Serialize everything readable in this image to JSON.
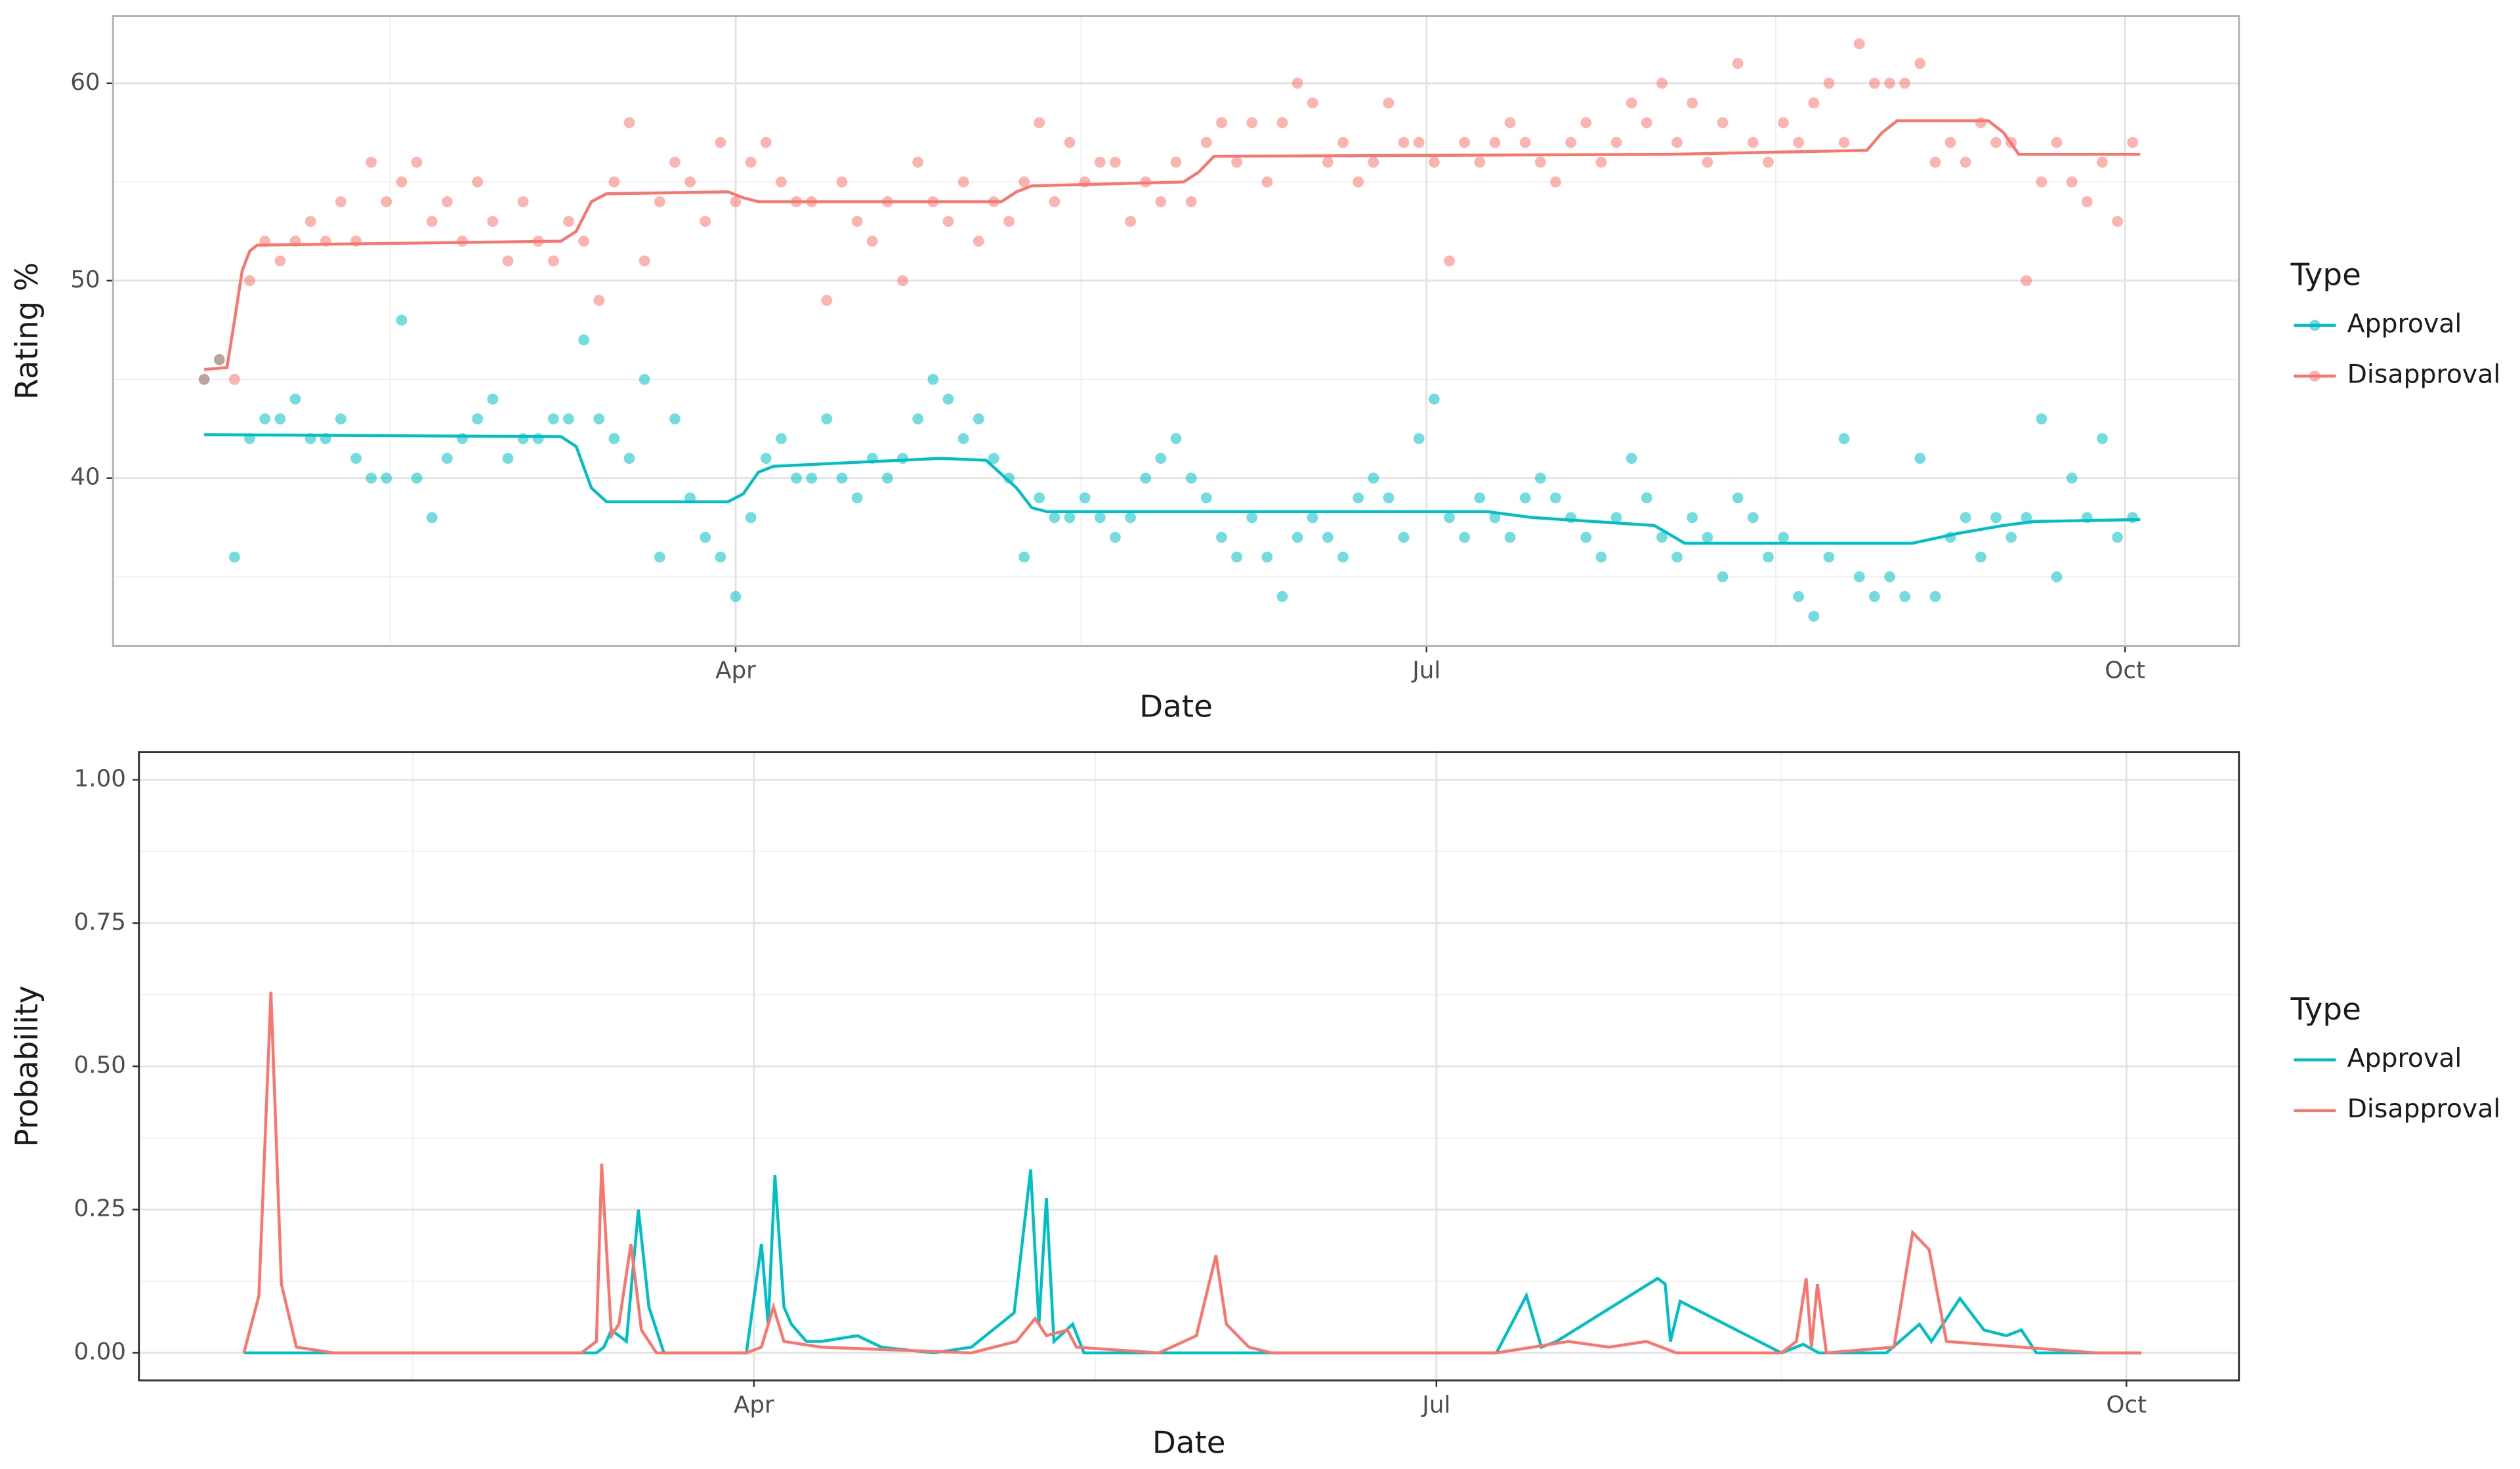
{
  "chart_data": [
    {
      "type": "scatter",
      "x_label": "Date",
      "y_label": "Rating %",
      "legend_title": "Type",
      "legend_position": "right",
      "grid": true,
      "xlim": [
        9,
        289
      ],
      "xticks": [
        {
          "value": 91,
          "label": "Apr"
        },
        {
          "value": 182,
          "label": "Jul"
        },
        {
          "value": 274,
          "label": "Oct"
        }
      ],
      "ylim": [
        31.5,
        63.4
      ],
      "yticks": [
        40,
        50,
        60
      ],
      "series": [
        {
          "name": "Approval",
          "color": "#00BFC4",
          "x": [
            21,
            23,
            25,
            27,
            29,
            31,
            33,
            35,
            37,
            39,
            41,
            43,
            45,
            47,
            49,
            51,
            53,
            55,
            57,
            59,
            61,
            63,
            65,
            67,
            69,
            71,
            73,
            75,
            77,
            79,
            81,
            83,
            85,
            87,
            89,
            91,
            93,
            95,
            97,
            99,
            101,
            103,
            105,
            107,
            109,
            111,
            113,
            115,
            117,
            119,
            121,
            123,
            125,
            127,
            129,
            131,
            133,
            135,
            137,
            139,
            141,
            143,
            145,
            147,
            149,
            151,
            153,
            155,
            157,
            159,
            161,
            163,
            165,
            167,
            169,
            171,
            173,
            175,
            177,
            179,
            181,
            183,
            185,
            187,
            189,
            191,
            193,
            195,
            197,
            199,
            201,
            203,
            205,
            207,
            209,
            211,
            213,
            215,
            217,
            219,
            221,
            223,
            225,
            227,
            229,
            231,
            233,
            235,
            237,
            239,
            241,
            243,
            245,
            247,
            249,
            251,
            253,
            255,
            257,
            259,
            261,
            263,
            265,
            267,
            269,
            271,
            273,
            275
          ],
          "values": [
            45,
            46,
            36,
            42,
            43,
            43,
            44,
            42,
            42,
            43,
            41,
            40,
            40,
            48,
            40,
            38,
            41,
            42,
            43,
            44,
            41,
            42,
            42,
            43,
            43,
            47,
            43,
            42,
            41,
            45,
            36,
            43,
            39,
            37,
            36,
            34,
            38,
            41,
            42,
            40,
            40,
            43,
            40,
            39,
            41,
            40,
            41,
            43,
            45,
            44,
            42,
            43,
            41,
            40,
            36,
            39,
            38,
            38,
            39,
            38,
            37,
            38,
            40,
            41,
            42,
            40,
            39,
            37,
            36,
            38,
            36,
            34,
            37,
            38,
            37,
            36,
            39,
            40,
            39,
            37,
            42,
            44,
            38,
            37,
            39,
            38,
            37,
            39,
            40,
            39,
            38,
            37,
            36,
            38,
            41,
            39,
            37,
            36,
            38,
            37,
            35,
            39,
            38,
            36,
            37,
            34,
            33,
            36,
            42,
            35,
            34,
            35,
            34,
            41,
            34,
            37,
            38,
            36,
            38,
            37,
            38,
            43,
            35,
            40,
            38,
            42,
            37,
            38
          ],
          "trend_x": [
            21,
            68,
            70,
            72,
            74,
            90,
            92,
            94,
            96,
            118,
            124,
            128,
            130,
            132,
            190,
            196,
            212,
            216,
            246,
            252,
            258,
            262,
            276
          ],
          "trend": [
            42.2,
            42.1,
            41.6,
            39.5,
            38.8,
            38.8,
            39.2,
            40.3,
            40.6,
            41.0,
            40.9,
            39.5,
            38.5,
            38.3,
            38.3,
            38.0,
            37.6,
            36.7,
            36.7,
            37.2,
            37.6,
            37.8,
            37.9
          ]
        },
        {
          "name": "Disapproval",
          "color": "#F8766D",
          "x": [
            21,
            23,
            25,
            27,
            29,
            31,
            33,
            35,
            37,
            39,
            41,
            43,
            45,
            47,
            49,
            51,
            53,
            55,
            57,
            59,
            61,
            63,
            65,
            67,
            69,
            71,
            73,
            75,
            77,
            79,
            81,
            83,
            85,
            87,
            89,
            91,
            93,
            95,
            97,
            99,
            101,
            103,
            105,
            107,
            109,
            111,
            113,
            115,
            117,
            119,
            121,
            123,
            125,
            127,
            129,
            131,
            133,
            135,
            137,
            139,
            141,
            143,
            145,
            147,
            149,
            151,
            153,
            155,
            157,
            159,
            161,
            163,
            165,
            167,
            169,
            171,
            173,
            175,
            177,
            179,
            181,
            183,
            185,
            187,
            189,
            191,
            193,
            195,
            197,
            199,
            201,
            203,
            205,
            207,
            209,
            211,
            213,
            215,
            217,
            219,
            221,
            223,
            225,
            227,
            229,
            231,
            233,
            235,
            237,
            239,
            241,
            243,
            245,
            247,
            249,
            251,
            253,
            255,
            257,
            259,
            261,
            263,
            265,
            267,
            269,
            271,
            273,
            275
          ],
          "values": [
            45,
            46,
            45,
            50,
            52,
            51,
            52,
            53,
            52,
            54,
            52,
            56,
            54,
            55,
            56,
            53,
            54,
            52,
            55,
            53,
            51,
            54,
            52,
            51,
            53,
            52,
            49,
            55,
            58,
            51,
            54,
            56,
            55,
            53,
            57,
            54,
            56,
            57,
            55,
            54,
            54,
            49,
            55,
            53,
            52,
            54,
            50,
            56,
            54,
            53,
            55,
            52,
            54,
            53,
            55,
            58,
            54,
            57,
            55,
            56,
            56,
            53,
            55,
            54,
            56,
            54,
            57,
            58,
            56,
            58,
            55,
            58,
            60,
            59,
            56,
            57,
            55,
            56,
            59,
            57,
            57,
            56,
            51,
            57,
            56,
            57,
            58,
            57,
            56,
            55,
            57,
            58,
            56,
            57,
            59,
            58,
            60,
            57,
            59,
            56,
            58,
            61,
            57,
            56,
            58,
            57,
            59,
            60,
            57,
            62,
            60,
            60,
            60,
            61,
            56,
            57,
            56,
            58,
            57,
            57,
            50,
            55,
            57,
            55,
            54,
            56,
            53,
            57
          ],
          "trend_x": [
            21,
            24,
            25,
            26,
            27,
            28,
            68,
            70,
            72,
            74,
            90,
            92,
            94,
            126,
            128,
            130,
            150,
            152,
            154,
            214,
            240,
            242,
            244,
            256,
            258,
            260,
            276
          ],
          "trend": [
            45.5,
            45.6,
            48,
            50.5,
            51.5,
            51.8,
            52.0,
            52.5,
            54.0,
            54.4,
            54.5,
            54.2,
            54.0,
            54.0,
            54.5,
            54.8,
            55.0,
            55.5,
            56.3,
            56.4,
            56.6,
            57.5,
            58.1,
            58.1,
            57.5,
            56.4,
            56.4
          ]
        }
      ]
    },
    {
      "type": "line",
      "x_label": "Date",
      "y_label": "Probability",
      "legend_title": "Type",
      "legend_position": "right",
      "grid": true,
      "xlim": [
        9,
        289
      ],
      "xticks": [
        {
          "value": 91,
          "label": "Apr"
        },
        {
          "value": 182,
          "label": "Jul"
        },
        {
          "value": 274,
          "label": "Oct"
        }
      ],
      "ylim": [
        -0.048,
        1.048
      ],
      "yticks": [
        {
          "value": 0,
          "label": "0.00"
        },
        {
          "value": 0.25,
          "label": "0.25"
        },
        {
          "value": 0.5,
          "label": "0.50"
        },
        {
          "value": 0.75,
          "label": "0.75"
        },
        {
          "value": 1,
          "label": "1.00"
        }
      ],
      "series": [
        {
          "name": "Approval",
          "color": "#00BFC4",
          "x": [
            23,
            70,
            71,
            72,
            74,
            75.6,
            77,
            79,
            90,
            92,
            92.9,
            93.8,
            95,
            96,
            98,
            100,
            104.8,
            108,
            115,
            120,
            125.7,
            127.9,
            129,
            130,
            131,
            133.5,
            135,
            140,
            190,
            194,
            196,
            198,
            211.5,
            212.5,
            213.2,
            214.5,
            228,
            230.9,
            233,
            242,
            246.4,
            248,
            251.8,
            255,
            258,
            260,
            262,
            276
          ],
          "values": [
            0,
            0,
            0.01,
            0.04,
            0.02,
            0.25,
            0.08,
            0,
            0,
            0.19,
            0.05,
            0.31,
            0.08,
            0.05,
            0.02,
            0.02,
            0.03,
            0.01,
            0,
            0.01,
            0.07,
            0.32,
            0.05,
            0.27,
            0.02,
            0.05,
            0,
            0,
            0,
            0.1,
            0.01,
            0.02,
            0.13,
            0.12,
            0.02,
            0.09,
            0,
            0.015,
            0,
            0,
            0.05,
            0.02,
            0.095,
            0.04,
            0.03,
            0.04,
            0,
            0
          ]
        },
        {
          "name": "Disapproval",
          "color": "#F8766D",
          "x": [
            23,
            25,
            26.6,
            28,
            30,
            35,
            68,
            70,
            70.7,
            72,
            73,
            74.6,
            76,
            78,
            90,
            92,
            93.6,
            95,
            100,
            120,
            126,
            128.5,
            130,
            132.8,
            134,
            145,
            150,
            152.6,
            154,
            157,
            160,
            190,
            199.6,
            205,
            210,
            214,
            228,
            230,
            231.3,
            232,
            232.8,
            234,
            243,
            245.5,
            247.7,
            250,
            260,
            270,
            276
          ],
          "values": [
            0,
            0.1,
            0.63,
            0.12,
            0.01,
            0,
            0,
            0.02,
            0.33,
            0.03,
            0.05,
            0.19,
            0.04,
            0,
            0,
            0.01,
            0.08,
            0.02,
            0.01,
            0,
            0.02,
            0.06,
            0.03,
            0.04,
            0.01,
            0,
            0.03,
            0.17,
            0.05,
            0.01,
            0,
            0,
            0.02,
            0.01,
            0.02,
            0,
            0,
            0.02,
            0.13,
            0.01,
            0.12,
            0,
            0.01,
            0.21,
            0.18,
            0.02,
            0.01,
            0,
            0
          ]
        }
      ]
    }
  ]
}
